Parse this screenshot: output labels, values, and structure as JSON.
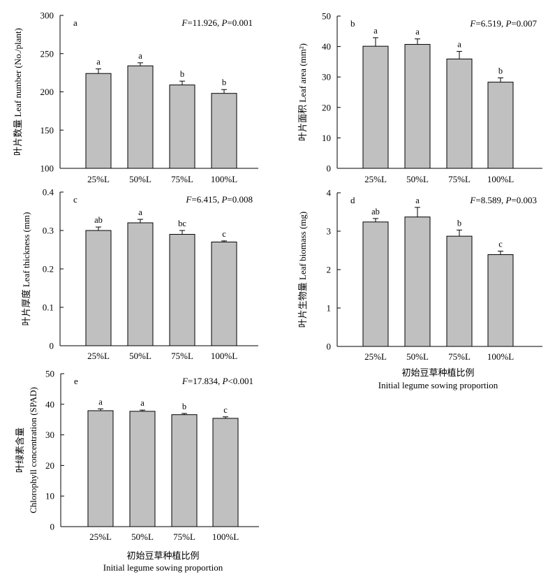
{
  "chart_data": [
    {
      "panel": "a",
      "type": "bar",
      "ylabel": "叶片数量 Leaf number (No./plant)",
      "stats": {
        "F": "11.926",
        "P_op": "=",
        "P": "0.001"
      },
      "ylim": [
        100,
        300
      ],
      "yticks": [
        100,
        150,
        200,
        250,
        300
      ],
      "categories": [
        "25%L",
        "50%L",
        "75%L",
        "100%L"
      ],
      "values": [
        224,
        234,
        209,
        198
      ],
      "errors": [
        6,
        4,
        5,
        5
      ],
      "letters": [
        "a",
        "a",
        "b",
        "b"
      ],
      "xlabel_cn": "",
      "xlabel_en": ""
    },
    {
      "panel": "b",
      "type": "bar",
      "ylabel": "叶片面积 Leaf area (mm²)",
      "stats": {
        "F": "6.519",
        "P_op": "=",
        "P": "0.007"
      },
      "ylim": [
        0,
        50
      ],
      "yticks": [
        0,
        10,
        20,
        30,
        40,
        50
      ],
      "categories": [
        "25%L",
        "50%L",
        "75%L",
        "100%L"
      ],
      "values": [
        40.1,
        40.7,
        35.9,
        28.3
      ],
      "errors": [
        2.8,
        1.8,
        2.5,
        1.4
      ],
      "letters": [
        "a",
        "a",
        "a",
        "b"
      ],
      "xlabel_cn": "",
      "xlabel_en": ""
    },
    {
      "panel": "c",
      "type": "bar",
      "ylabel": "叶片厚度 Leaf thickness (mm)",
      "stats": {
        "F": "6.415",
        "P_op": "=",
        "P": "0.008"
      },
      "ylim": [
        0,
        0.4
      ],
      "yticks": [
        0,
        0.1,
        0.2,
        0.3,
        0.4
      ],
      "categories": [
        "25%L",
        "50%L",
        "75%L",
        "100%L"
      ],
      "values": [
        0.3,
        0.32,
        0.29,
        0.27
      ],
      "errors": [
        0.009,
        0.009,
        0.01,
        0.003
      ],
      "letters": [
        "ab",
        "a",
        "bc",
        "c"
      ],
      "xlabel_cn": "",
      "xlabel_en": ""
    },
    {
      "panel": "d",
      "type": "bar",
      "ylabel": "叶片生物量 Leaf biomass (mg)",
      "stats": {
        "F": "8.589",
        "P_op": "=",
        "P": "0.003"
      },
      "ylim": [
        0,
        4
      ],
      "yticks": [
        0,
        1,
        2,
        3,
        4
      ],
      "categories": [
        "25%L",
        "50%L",
        "75%L",
        "100%L"
      ],
      "values": [
        3.24,
        3.37,
        2.87,
        2.39
      ],
      "errors": [
        0.09,
        0.25,
        0.16,
        0.09
      ],
      "letters": [
        "ab",
        "a",
        "b",
        "c"
      ],
      "xlabel_cn": "初始豆草种植比例",
      "xlabel_en": "Initial legume sowing proportion"
    },
    {
      "panel": "e",
      "type": "bar",
      "ylabel": "叶绿素含量 Chlorophyll concentration (SPAD)",
      "stats": {
        "F": "17.834",
        "P_op": "<",
        "P": "0.001"
      },
      "ylim": [
        0,
        50
      ],
      "yticks": [
        0,
        10,
        20,
        30,
        40,
        50
      ],
      "categories": [
        "25%L",
        "50%L",
        "75%L",
        "100%L"
      ],
      "values": [
        37.9,
        37.7,
        36.6,
        35.4
      ],
      "errors": [
        0.6,
        0.4,
        0.4,
        0.5
      ],
      "letters": [
        "a",
        "a",
        "b",
        "c"
      ],
      "xlabel_cn": "初始豆草种植比例",
      "xlabel_en": "Initial legume sowing proportion"
    }
  ],
  "colors": {
    "bar_fill": "#c0c0c0",
    "stroke": "#000000",
    "background": "#ffffff"
  }
}
